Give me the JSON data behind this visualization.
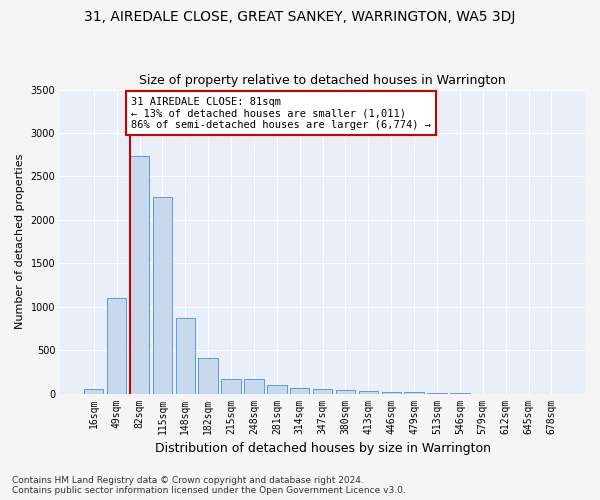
{
  "title": "31, AIREDALE CLOSE, GREAT SANKEY, WARRINGTON, WA5 3DJ",
  "subtitle": "Size of property relative to detached houses in Warrington",
  "xlabel": "Distribution of detached houses by size in Warrington",
  "ylabel": "Number of detached properties",
  "bar_color": "#c8d9ee",
  "bar_edge_color": "#5b9bd5",
  "background_color": "#e8eff8",
  "grid_color": "#ffffff",
  "annotation_line_color": "#cc0000",
  "annotation_text": "31 AIREDALE CLOSE: 81sqm\n← 13% of detached houses are smaller (1,011)\n86% of semi-detached houses are larger (6,774) →",
  "annotation_box_color": "#ffffff",
  "annotation_edge_color": "#cc0000",
  "categories": [
    "16sqm",
    "49sqm",
    "82sqm",
    "115sqm",
    "148sqm",
    "182sqm",
    "215sqm",
    "248sqm",
    "281sqm",
    "314sqm",
    "347sqm",
    "380sqm",
    "413sqm",
    "446sqm",
    "479sqm",
    "513sqm",
    "546sqm",
    "579sqm",
    "612sqm",
    "645sqm",
    "678sqm"
  ],
  "values": [
    55,
    1100,
    2740,
    2260,
    870,
    415,
    170,
    165,
    95,
    65,
    50,
    40,
    35,
    20,
    20,
    5,
    5,
    0,
    0,
    0,
    0
  ],
  "ylim": [
    0,
    3500
  ],
  "yticks": [
    0,
    500,
    1000,
    1500,
    2000,
    2500,
    3000,
    3500
  ],
  "property_bar_index": 2,
  "footer": "Contains HM Land Registry data © Crown copyright and database right 2024.\nContains public sector information licensed under the Open Government Licence v3.0.",
  "title_fontsize": 10,
  "subtitle_fontsize": 9,
  "xlabel_fontsize": 9,
  "ylabel_fontsize": 8,
  "tick_fontsize": 7,
  "footer_fontsize": 6.5
}
